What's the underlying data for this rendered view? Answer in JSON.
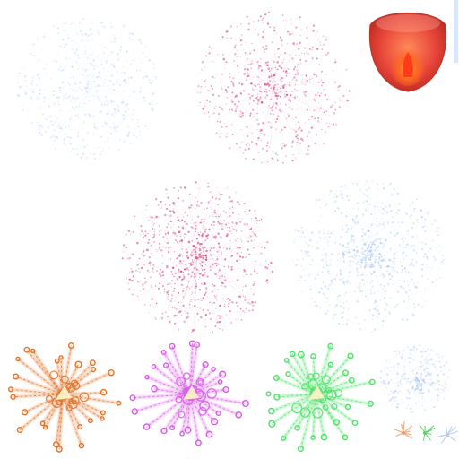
{
  "sprite_sheet": {
    "background": "#ffffff",
    "sprites": [
      {
        "name": "firework-burst-pale-blue-large",
        "style": "sparse-dots",
        "color": "#cfe0fb",
        "core": "#e6efff",
        "density": 650
      },
      {
        "name": "firework-burst-pink-large",
        "style": "sparse-dots",
        "color": "#e3789c",
        "core": "#d94d7a",
        "density": 700
      },
      {
        "name": "lantern-sprite",
        "style": "lantern",
        "shell": "#e8463a",
        "glow": "#ff7a2a",
        "flame": "#ff3b1a"
      },
      {
        "name": "firework-burst-pink-medium",
        "style": "sparse-dots",
        "color": "#e06c93",
        "core": "#d33f6c",
        "density": 900
      },
      {
        "name": "firework-burst-pale-blue-medium",
        "style": "sparse-dots",
        "color": "#c7daf8",
        "core": "#aac6f3",
        "density": 900
      },
      {
        "name": "firework-burst-orange-glow",
        "style": "glow-trails",
        "color": "#e0742a",
        "highlight": "#fff1c9"
      },
      {
        "name": "firework-burst-magenta-glow",
        "style": "glow-trails",
        "color": "#d85ee6",
        "highlight": "#fff1c9"
      },
      {
        "name": "firework-burst-green-glow",
        "style": "glow-trails",
        "color": "#4fe26a",
        "highlight": "#fff1c9"
      },
      {
        "name": "firework-burst-pale-blue-small",
        "style": "sparse-dots",
        "color": "#c7daf8",
        "core": "#aac6f3",
        "density": 360
      },
      {
        "name": "firework-thumb-orange",
        "style": "thumb",
        "color": "#f0a070"
      },
      {
        "name": "firework-thumb-green",
        "style": "thumb",
        "color": "#5fd070"
      },
      {
        "name": "firework-thumb-blue",
        "style": "thumb",
        "color": "#b7cdf0"
      }
    ]
  }
}
